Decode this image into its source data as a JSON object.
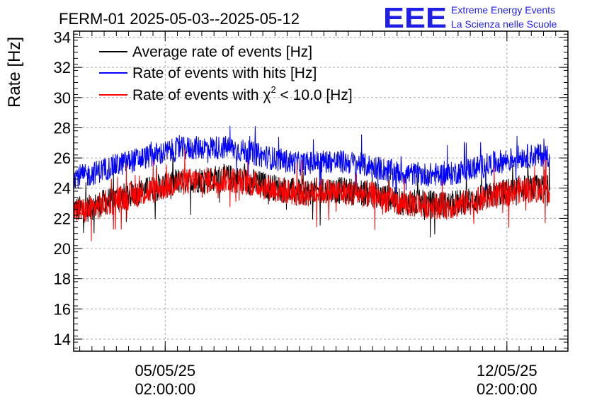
{
  "header": {
    "title": "FERM-01 2025-05-03--2025-05-12",
    "logo_text": "EEE",
    "logo_line1": "Extreme Energy Events",
    "logo_line2": "La Scienza nelle Scuole"
  },
  "chart_data": {
    "type": "line",
    "title": "FERM-01 2025-05-03--2025-05-12",
    "ylabel": "Rate [Hz]",
    "xlabel": "",
    "ylim": [
      13.2,
      34.4
    ],
    "xlim": [
      "2025-05-03T05:00:00",
      "2025-05-13T08:00:00"
    ],
    "y_ticks": [
      "14",
      "16",
      "18",
      "20",
      "22",
      "24",
      "26",
      "28",
      "30",
      "32",
      "34"
    ],
    "x_tick_labels": [
      {
        "x": "2025-05-05T02:00:00",
        "date": "05/05/25",
        "time": "02:00:00"
      },
      {
        "x": "2025-05-12T02:00:00",
        "date": "12/05/25",
        "time": "02:00:00"
      }
    ],
    "grid": true,
    "legend_position": "top-left",
    "x": [
      "2025-05-03T11:00:00",
      "2025-05-03T21:00:00",
      "2025-05-04T09:00:00",
      "2025-05-04T21:00:00",
      "2025-05-05T09:00:00",
      "2025-05-05T21:00:00",
      "2025-05-06T09:00:00",
      "2025-05-06T21:00:00",
      "2025-05-07T09:00:00",
      "2025-05-07T21:00:00",
      "2025-05-08T09:00:00",
      "2025-05-08T21:00:00",
      "2025-05-09T09:00:00",
      "2025-05-09T21:00:00",
      "2025-05-10T09:00:00",
      "2025-05-10T21:00:00",
      "2025-05-11T09:00:00",
      "2025-05-11T21:00:00",
      "2025-05-12T09:00:00",
      "2025-05-12T21:00:00"
    ],
    "series": [
      {
        "name": "Average rate of events [Hz]",
        "color": "#000000",
        "values": [
          22.6,
          23.1,
          23.6,
          24.0,
          24.5,
          24.6,
          24.7,
          24.4,
          24.0,
          23.7,
          23.9,
          23.8,
          23.6,
          23.1,
          23.0,
          22.9,
          23.2,
          23.6,
          24.0,
          24.0
        ],
        "band": [
          0.9,
          0.9,
          0.9,
          0.9,
          0.9,
          0.9,
          0.9,
          0.9,
          0.9,
          0.9,
          0.9,
          0.9,
          0.9,
          0.9,
          0.9,
          0.9,
          0.9,
          0.9,
          0.9,
          0.9
        ]
      },
      {
        "name": "Rate of events with hits [Hz]",
        "color": "#0000ff",
        "values": [
          24.8,
          25.3,
          25.8,
          26.2,
          26.6,
          26.7,
          26.7,
          26.3,
          25.9,
          25.6,
          25.8,
          25.7,
          25.4,
          25.0,
          24.9,
          24.9,
          25.3,
          25.7,
          26.1,
          26.2
        ],
        "band": [
          0.8,
          0.8,
          0.8,
          0.8,
          0.8,
          0.8,
          0.8,
          0.8,
          0.8,
          0.8,
          0.8,
          0.8,
          0.8,
          0.8,
          0.8,
          0.8,
          0.8,
          0.8,
          0.8,
          0.8
        ]
      },
      {
        "name": "Rate of events with χ² < 10.0 [Hz]",
        "color": "#ff0000",
        "values": [
          22.5,
          23.0,
          23.5,
          23.9,
          24.4,
          24.5,
          24.6,
          24.3,
          23.9,
          23.6,
          23.8,
          23.7,
          23.5,
          23.0,
          22.9,
          22.8,
          23.1,
          23.5,
          23.9,
          23.9
        ],
        "band": [
          0.9,
          0.9,
          0.9,
          0.9,
          0.9,
          0.9,
          0.9,
          0.9,
          0.9,
          0.9,
          0.9,
          0.9,
          0.9,
          0.9,
          0.9,
          0.9,
          0.9,
          0.9,
          0.9,
          0.9
        ]
      }
    ]
  },
  "legend": {
    "item0": "Average rate of events [Hz]",
    "item1": "Rate of events with hits [Hz]",
    "item2_pre": "Rate of events with ",
    "item2_chi": "χ",
    "item2_sup": "2",
    "item2_post": " < 10.0 [Hz]"
  },
  "colors": {
    "logo": "#1f1fe6",
    "grid": "#aaaaaa"
  }
}
